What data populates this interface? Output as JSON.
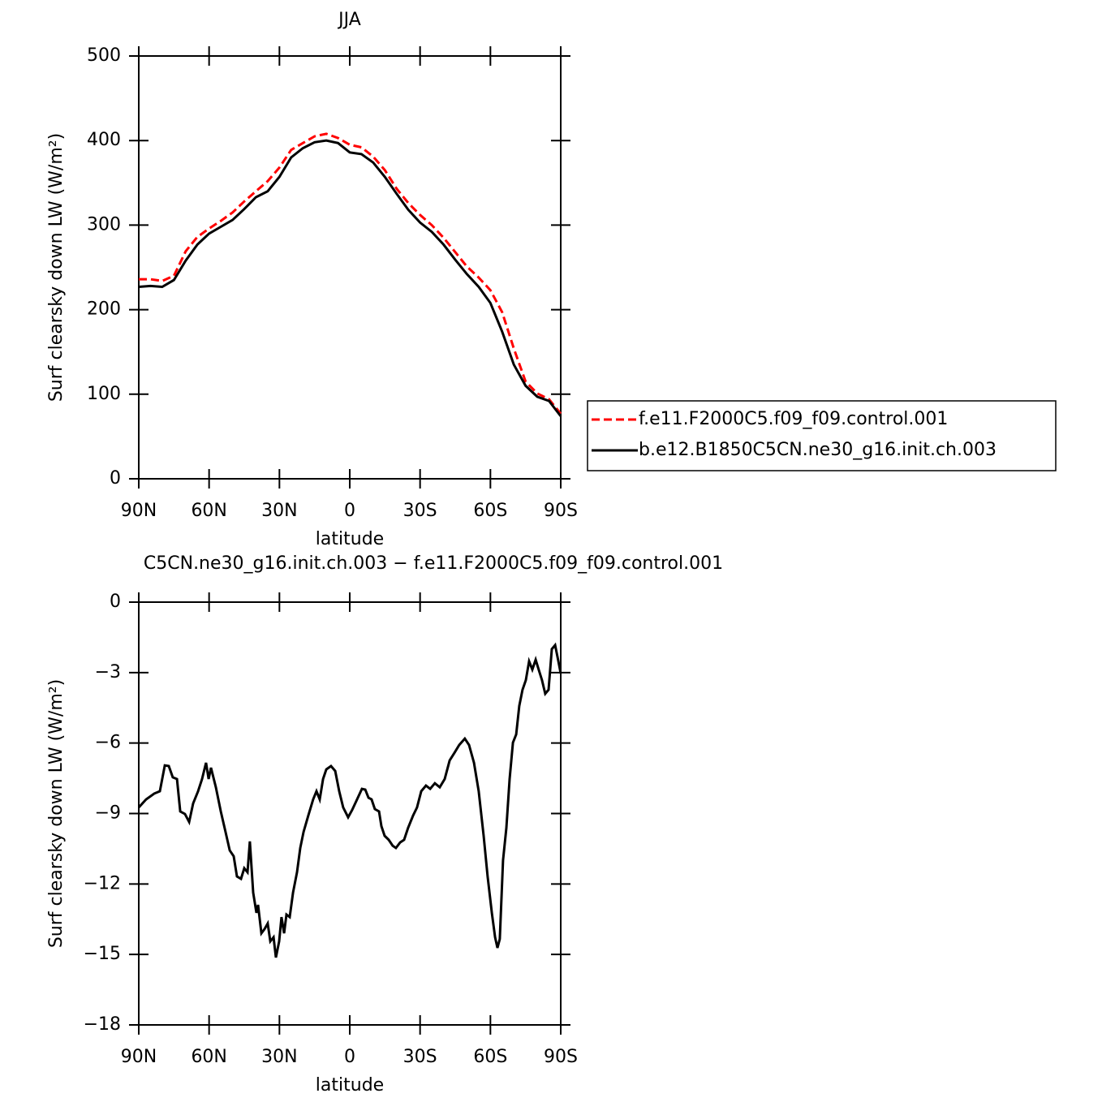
{
  "chart_data": [
    {
      "type": "line",
      "title": "JJA",
      "x_label": "latitude",
      "y_label": "Surf  clearsky  down  LW  (W/m²)",
      "x": [
        90,
        85,
        80,
        75,
        70,
        65,
        60,
        55,
        50,
        45,
        40,
        35,
        30,
        25,
        20,
        15,
        10,
        5,
        0,
        -5,
        -10,
        -15,
        -20,
        -25,
        -30,
        -35,
        -40,
        -45,
        -50,
        -55,
        -60,
        -65,
        -70,
        -75,
        -80,
        -85,
        -90
      ],
      "series": [
        {
          "name": "f.e11.F2000C5.f09_f09.control.001",
          "color": "#ff0000",
          "dashed": true,
          "values": [
            236,
            236,
            234,
            240,
            269,
            286,
            296,
            305,
            315,
            328,
            340,
            352,
            368,
            389,
            397,
            405,
            408,
            403,
            395,
            392,
            381,
            365,
            343,
            326,
            312,
            300,
            285,
            268,
            251,
            238,
            223,
            197,
            154,
            115,
            101,
            94,
            77
          ]
        },
        {
          "name": "b.e12.B1850C5CN.ne30_g16.init.ch.003",
          "color": "#000000",
          "dashed": false,
          "values": [
            227,
            228,
            227,
            235,
            258,
            277,
            290,
            298,
            306,
            319,
            333,
            340,
            357,
            380,
            391,
            398,
            400,
            397,
            386,
            384,
            374,
            357,
            337,
            318,
            303,
            292,
            277,
            259,
            242,
            227,
            208,
            174,
            135,
            110,
            97,
            92,
            74
          ]
        }
      ],
      "xlim": [
        90,
        -90
      ],
      "xticks": [
        {
          "value": 90,
          "label": "90N"
        },
        {
          "value": 60,
          "label": "60N"
        },
        {
          "value": 30,
          "label": "30N"
        },
        0,
        {
          "value": -30,
          "label": "30S"
        },
        {
          "value": -60,
          "label": "60S"
        },
        {
          "value": -90,
          "label": "90S"
        }
      ],
      "ylim": [
        0,
        500
      ],
      "yticks": [
        0,
        100,
        200,
        300,
        400,
        500
      ],
      "legend": "right"
    },
    {
      "type": "line",
      "title": "C5CN.ne30_g16.init.ch.003 − f.e11.F2000C5.f09_f09.control.001",
      "x_label": "latitude",
      "y_label": "Surf  clearsky  down  LW  (W/m²)",
      "x": [
        90,
        86.9,
        83.4,
        81,
        78.9,
        77.2,
        75.5,
        73.7,
        72.3,
        70.3,
        68.5,
        66.8,
        64.7,
        63,
        61.3,
        60.2,
        59.2,
        57.1,
        55,
        53,
        51.2,
        49.5,
        48.1,
        46.4,
        45,
        43.6,
        42.6,
        41.2,
        39.8,
        39.1,
        37.7,
        36.4,
        35,
        33.9,
        32.5,
        31.5,
        30.1,
        29.1,
        28,
        27,
        25.6,
        24.2,
        22.5,
        21.1,
        19.7,
        17.7,
        15.6,
        14.2,
        12.8,
        11.4,
        10,
        8,
        6.2,
        4.5,
        2.8,
        0.7,
        -1,
        -3.1,
        -5.2,
        -6.6,
        -8,
        -9.3,
        -10.7,
        -12.5,
        -13.5,
        -14.9,
        -16.6,
        -18.3,
        -19.7,
        -21.5,
        -23.2,
        -24.9,
        -27,
        -28.7,
        -30.5,
        -32.5,
        -34.3,
        -36.3,
        -38.4,
        -40.5,
        -42.6,
        -44.6,
        -46.7,
        -49.1,
        -50.9,
        -53,
        -55,
        -57.1,
        -58.8,
        -60.6,
        -62,
        -63,
        -64,
        -65.4,
        -66.8,
        -68.2,
        -69.6,
        -71,
        -72.3,
        -73.7,
        -75.1,
        -76.5,
        -77.9,
        -79.3,
        -80.6,
        -82,
        -83.4,
        -84.8,
        -86.2,
        -87.6,
        -89,
        -90
      ],
      "series": [
        {
          "color": "#000000",
          "dashed": false,
          "values": [
            -8.74,
            -8.4,
            -8.15,
            -8.05,
            -6.95,
            -6.98,
            -7.46,
            -7.53,
            -8.91,
            -9.02,
            -9.36,
            -8.57,
            -8.05,
            -7.53,
            -6.84,
            -7.53,
            -7.05,
            -7.88,
            -8.91,
            -9.78,
            -10.57,
            -10.82,
            -11.68,
            -11.78,
            -11.33,
            -11.5,
            -10.19,
            -12.37,
            -13.23,
            -12.89,
            -14.1,
            -13.93,
            -13.68,
            -14.44,
            -14.27,
            -15.13,
            -14.44,
            -13.41,
            -14.1,
            -13.3,
            -13.41,
            -12.37,
            -11.5,
            -10.47,
            -9.78,
            -9.09,
            -8.4,
            -8.05,
            -8.4,
            -7.53,
            -7.12,
            -6.98,
            -7.19,
            -8.05,
            -8.74,
            -9.16,
            -8.85,
            -8.4,
            -7.95,
            -7.98,
            -8.33,
            -8.4,
            -8.81,
            -8.91,
            -9.54,
            -9.95,
            -10.12,
            -10.37,
            -10.47,
            -10.23,
            -10.12,
            -9.61,
            -9.09,
            -8.74,
            -8.05,
            -7.81,
            -7.95,
            -7.71,
            -7.88,
            -7.53,
            -6.74,
            -6.43,
            -6.08,
            -5.81,
            -6.08,
            -6.84,
            -8.05,
            -9.95,
            -11.68,
            -13.23,
            -14.27,
            -14.72,
            -14.34,
            -10.99,
            -9.61,
            -7.53,
            -5.98,
            -5.63,
            -4.42,
            -3.73,
            -3.32,
            -2.52,
            -2.87,
            -2.45,
            -2.87,
            -3.32,
            -3.9,
            -3.73,
            -2,
            -1.83,
            -2.52,
            -3.04
          ]
        }
      ],
      "xlim": [
        90,
        -90
      ],
      "xticks": [
        {
          "value": 90,
          "label": "90N"
        },
        {
          "value": 60,
          "label": "60N"
        },
        {
          "value": 30,
          "label": "30N"
        },
        0,
        {
          "value": -30,
          "label": "30S"
        },
        {
          "value": -60,
          "label": "60S"
        },
        {
          "value": -90,
          "label": "90S"
        }
      ],
      "ylim": [
        -18,
        0
      ],
      "yticks": [
        {
          "value": -18,
          "label": "−18"
        },
        {
          "value": -15,
          "label": "−15"
        },
        {
          "value": -12,
          "label": "−12"
        },
        {
          "value": -9,
          "label": "−9"
        },
        {
          "value": -6,
          "label": "−6"
        },
        {
          "value": -3,
          "label": "−3"
        },
        0
      ]
    }
  ]
}
